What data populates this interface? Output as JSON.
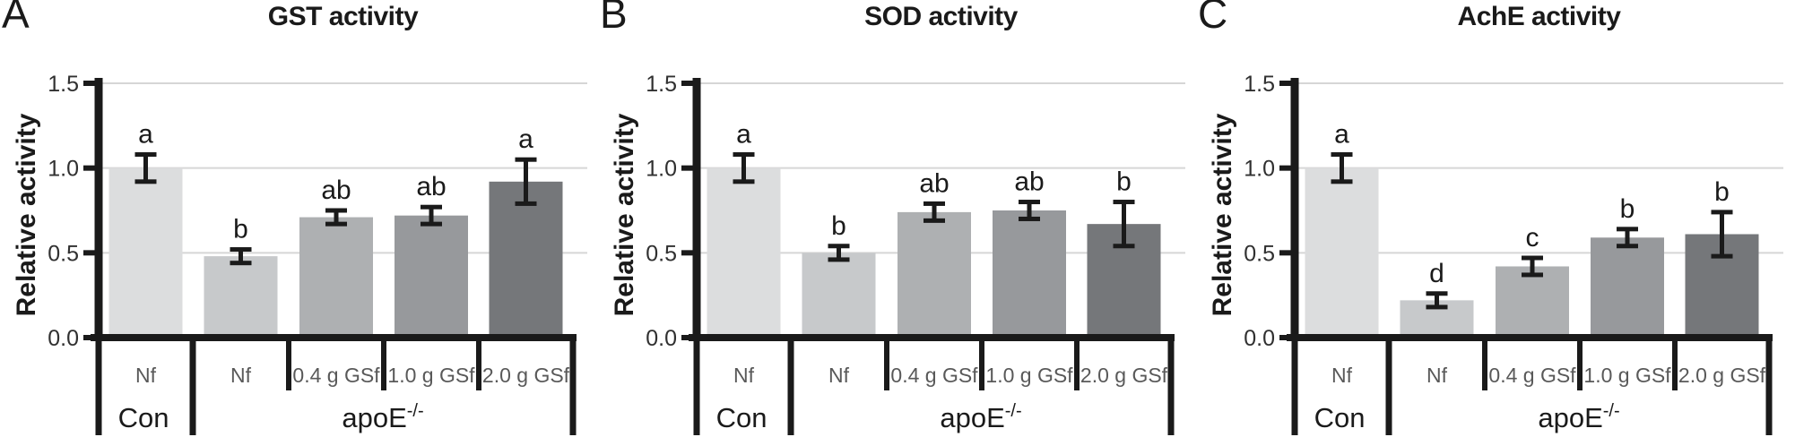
{
  "figure": {
    "background": "#ffffff",
    "description": "Three-panel bar figure comparing enzyme activities"
  },
  "styles": {
    "axis_color": "#1a1a1a",
    "grid_color": "#d6d6d6",
    "error_bar_color": "#1a1a1a",
    "tick_label_color": "#303030",
    "category_label_color": "#595959",
    "group_label_color": "#1a1a1a",
    "sig_letter_color": "#1a1a1a",
    "bar_colors": [
      "#dcddde",
      "#c7c9cb",
      "#aeb0b2",
      "#97999c",
      "#75777a"
    ]
  },
  "chart_data": [
    {
      "type": "bar",
      "panel_label": "A",
      "title": "GST activity",
      "ylabel": "Relative activity",
      "ylim": [
        0,
        1.5
      ],
      "yticks": [
        0.0,
        0.5,
        1.0,
        1.5
      ],
      "grid": true,
      "legend": "none",
      "categories": [
        "Nf",
        "Nf",
        "0.4 g GSf",
        "1.0 g GSf",
        "2.0 g GSf"
      ],
      "group_row": [
        {
          "label_base": "Con",
          "label_sup": "",
          "span_start": 0,
          "span_end": 0
        },
        {
          "label_base": "apoE",
          "label_sup": "-/-",
          "span_start": 1,
          "span_end": 4
        }
      ],
      "values": [
        1.0,
        0.48,
        0.71,
        0.72,
        0.92
      ],
      "errors": [
        0.08,
        0.04,
        0.04,
        0.05,
        0.13
      ],
      "sig_letters": [
        "a",
        "b",
        "ab",
        "ab",
        "a"
      ]
    },
    {
      "type": "bar",
      "panel_label": "B",
      "title": "SOD activity",
      "ylabel": "Relative activity",
      "ylim": [
        0,
        1.5
      ],
      "yticks": [
        0.0,
        0.5,
        1.0,
        1.5
      ],
      "grid": true,
      "legend": "none",
      "categories": [
        "Nf",
        "Nf",
        "0.4 g GSf",
        "1.0 g GSf",
        "2.0 g GSf"
      ],
      "group_row": [
        {
          "label_base": "Con",
          "label_sup": "",
          "span_start": 0,
          "span_end": 0
        },
        {
          "label_base": "apoE",
          "label_sup": "-/-",
          "span_start": 1,
          "span_end": 4
        }
      ],
      "values": [
        1.0,
        0.5,
        0.74,
        0.75,
        0.67
      ],
      "errors": [
        0.08,
        0.04,
        0.05,
        0.05,
        0.13
      ],
      "sig_letters": [
        "a",
        "b",
        "ab",
        "ab",
        "b"
      ]
    },
    {
      "type": "bar",
      "panel_label": "C",
      "title": "AchE activity",
      "ylabel": "Relative activity",
      "ylim": [
        0,
        1.5
      ],
      "yticks": [
        0.0,
        0.5,
        1.0,
        1.5
      ],
      "grid": true,
      "legend": "none",
      "categories": [
        "Nf",
        "Nf",
        "0.4 g GSf",
        "1.0 g GSf",
        "2.0 g GSf"
      ],
      "group_row": [
        {
          "label_base": "Con",
          "label_sup": "",
          "span_start": 0,
          "span_end": 0
        },
        {
          "label_base": "apoE",
          "label_sup": "-/-",
          "span_start": 1,
          "span_end": 4
        }
      ],
      "values": [
        1.0,
        0.22,
        0.42,
        0.59,
        0.61
      ],
      "errors": [
        0.08,
        0.04,
        0.05,
        0.05,
        0.13
      ],
      "sig_letters": [
        "a",
        "d",
        "c",
        "b",
        "b"
      ]
    }
  ]
}
